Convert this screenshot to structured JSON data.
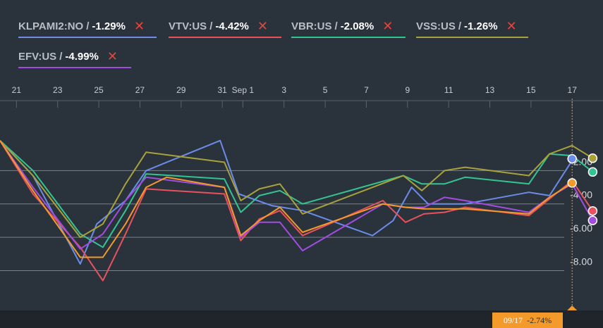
{
  "legend": [
    {
      "ticker": "KLPAMI2:NO",
      "change": "-1.29%",
      "color": "#6b8ce8"
    },
    {
      "ticker": "VTV:US",
      "change": "-4.42%",
      "color": "#e8525e"
    },
    {
      "ticker": "VBR:US",
      "change": "-2.08%",
      "color": "#34c491"
    },
    {
      "ticker": "VSS:US",
      "change": "-1.26%",
      "color": "#a8a23c"
    },
    {
      "ticker": "EFV:US",
      "change": "-4.99%",
      "color": "#a24ce0"
    }
  ],
  "legend_separator": "/",
  "legend_close_icon": "✕",
  "tooltip": {
    "date": "09/17",
    "value": "-2.74%",
    "color": "#f39a2b"
  },
  "chart_data": {
    "type": "line",
    "x_tick_labels": [
      "21",
      "23",
      "25",
      "27",
      "29",
      "31",
      "Sep 1",
      "3",
      "5",
      "7",
      "9",
      "11",
      "13",
      "15",
      "17"
    ],
    "x_ticks_day": [
      0,
      2,
      4,
      6,
      8,
      10,
      11,
      13,
      15,
      17,
      19,
      21,
      23,
      25,
      27
    ],
    "y_tick_labels": [
      "-2.00",
      "-4.00",
      "-6.00",
      "-8.00"
    ],
    "y_ticks": [
      -2,
      -4,
      -6,
      -8
    ],
    "ylim": [
      -9.5,
      1.9
    ],
    "xlim_day": [
      -0.8,
      28.5
    ],
    "grid": true,
    "crosshair_day": 27,
    "series": [
      {
        "name": "KLPAMI2:NO",
        "color": "#6b8ce8",
        "x_day": [
          -0.8,
          0.8,
          3.1,
          3.9,
          5.3,
          6.3,
          9.9,
          10.8,
          12.4,
          13.9,
          17.3,
          18.3,
          19.2,
          20.0,
          21.8,
          24.9,
          25.9,
          27.0
        ],
        "values": [
          -0.2,
          -2.3,
          -7.6,
          -5.2,
          -3.8,
          -2.0,
          -0.2,
          -3.4,
          -4.1,
          -4.4,
          -5.9,
          -5.0,
          -3.0,
          -4.0,
          -4.0,
          -3.3,
          -3.5,
          -1.4
        ],
        "end": -1.29
      },
      {
        "name": "VTV:US",
        "color": "#e8525e",
        "x_day": [
          -0.8,
          0.8,
          3.1,
          4.2,
          5.3,
          6.3,
          10.1,
          10.9,
          11.8,
          12.8,
          13.9,
          17.8,
          18.9,
          19.8,
          20.8,
          21.8,
          24.9,
          25.9,
          27.0,
          28.0
        ],
        "values": [
          -0.2,
          -3.4,
          -6.6,
          -8.6,
          -5.8,
          -3.1,
          -3.4,
          -6.2,
          -4.9,
          -4.4,
          -5.9,
          -3.8,
          -5.1,
          -4.6,
          -4.5,
          -4.2,
          -4.7,
          -3.7,
          -2.6,
          -4.42
        ],
        "end": -4.42
      },
      {
        "name": "VBR:US",
        "color": "#34c491",
        "x_day": [
          -0.8,
          0.8,
          3.1,
          4.2,
          5.3,
          6.3,
          10.1,
          10.9,
          11.8,
          12.8,
          13.9,
          18.8,
          19.7,
          20.8,
          21.8,
          24.9,
          25.9,
          27.0,
          28.0
        ],
        "values": [
          -0.2,
          -2.0,
          -5.8,
          -6.6,
          -4.4,
          -2.2,
          -2.5,
          -4.5,
          -3.5,
          -3.2,
          -4.0,
          -2.3,
          -2.8,
          -2.8,
          -2.4,
          -2.8,
          -1.0,
          -1.1,
          -2.08
        ],
        "end": -2.08
      },
      {
        "name": "VSS:US",
        "color": "#a8a23c",
        "x_day": [
          -0.8,
          0.8,
          3.1,
          4.2,
          5.3,
          6.3,
          10.1,
          10.9,
          11.8,
          12.8,
          13.9,
          18.8,
          19.7,
          20.8,
          21.8,
          24.9,
          25.9,
          27.0,
          28.0
        ],
        "values": [
          -0.2,
          -2.3,
          -6.0,
          -5.2,
          -2.8,
          -0.9,
          -1.5,
          -3.8,
          -3.1,
          -2.8,
          -4.6,
          -2.3,
          -3.2,
          -2.0,
          -1.8,
          -2.3,
          -1.0,
          -0.5,
          -1.26
        ],
        "end": -1.26
      },
      {
        "name": "EFV:US",
        "color": "#a24ce0",
        "x_day": [
          -0.8,
          0.8,
          3.1,
          4.2,
          5.3,
          6.3,
          10.1,
          10.9,
          11.8,
          12.8,
          13.9,
          17.8,
          18.9,
          19.8,
          20.8,
          21.8,
          24.9,
          25.9,
          27.0,
          28.0
        ],
        "values": [
          -0.2,
          -3.0,
          -6.7,
          -5.8,
          -3.8,
          -2.4,
          -3.0,
          -6.0,
          -5.1,
          -5.1,
          -6.8,
          -4.0,
          -4.2,
          -4.2,
          -3.6,
          -3.8,
          -4.5,
          -3.6,
          -2.8,
          -4.99
        ],
        "end": -4.99
      },
      {
        "name": "",
        "color": "#f39a2b",
        "x_day": [
          -0.8,
          0.8,
          3.1,
          4.2,
          5.3,
          6.3,
          7.3,
          10.1,
          10.9,
          11.8,
          12.8,
          13.9,
          17.8,
          18.9,
          19.8,
          20.8,
          21.8,
          24.9,
          25.9,
          27.0
        ],
        "values": [
          -0.2,
          -3.2,
          -7.2,
          -7.2,
          -5.2,
          -3.0,
          -2.4,
          -3.0,
          -5.9,
          -5.0,
          -4.2,
          -5.7,
          -4.0,
          -4.2,
          -4.3,
          -4.3,
          -4.3,
          -4.6,
          -3.6,
          -2.74
        ],
        "end": -2.74
      }
    ]
  }
}
